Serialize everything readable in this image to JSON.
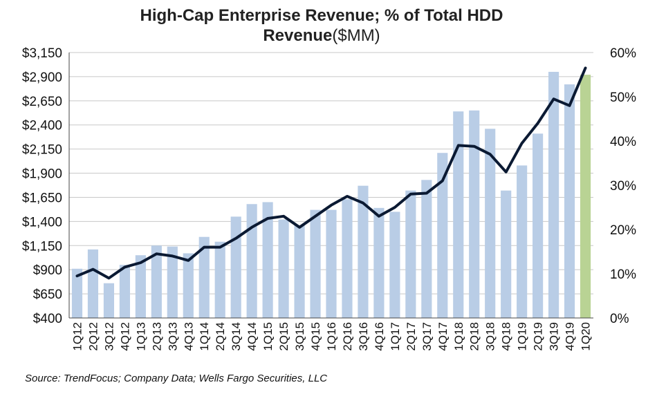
{
  "title": {
    "line1": "High-Cap Enterprise Revenue; % of Total HDD",
    "line2_bold": "Revenue",
    "line2_normal": "($MM)"
  },
  "source": "Source:  TrendFocus; Company Data; Wells Fargo Securities, LLC",
  "colors": {
    "bar": "#b9cde6",
    "bar_highlight": "#b9d394",
    "line": "#0b1a33",
    "grid": "#c8c8c8"
  },
  "chart_data": {
    "type": "bar",
    "categories": [
      "1Q12",
      "2Q12",
      "3Q12",
      "4Q12",
      "1Q13",
      "2Q13",
      "3Q13",
      "4Q13",
      "1Q14",
      "2Q14",
      "3Q14",
      "4Q14",
      "1Q15",
      "2Q15",
      "3Q15",
      "4Q15",
      "1Q16",
      "2Q16",
      "3Q16",
      "4Q16",
      "1Q17",
      "2Q17",
      "3Q17",
      "4Q17",
      "1Q18",
      "2Q18",
      "3Q18",
      "4Q18",
      "1Q19",
      "2Q19",
      "3Q19",
      "4Q19",
      "1Q20"
    ],
    "series": [
      {
        "type": "bar",
        "axis": "left",
        "values": [
          910,
          1110,
          760,
          950,
          1050,
          1150,
          1140,
          1070,
          1240,
          1190,
          1450,
          1580,
          1600,
          1420,
          1360,
          1520,
          1520,
          1630,
          1770,
          1540,
          1500,
          1720,
          1830,
          2110,
          2540,
          2550,
          2360,
          1720,
          1980,
          2310,
          2950,
          2820,
          2920
        ],
        "highlight_index": 32
      },
      {
        "type": "line",
        "axis": "right",
        "values": [
          9.5,
          11,
          9,
          11.5,
          12.5,
          14.5,
          14,
          13,
          16,
          16,
          18,
          20.5,
          22.5,
          23,
          20.5,
          23,
          25.5,
          27.5,
          26,
          23,
          25,
          28,
          28.2,
          31,
          39,
          38.8,
          37,
          33,
          39.5,
          44,
          49.5,
          48,
          56.5
        ]
      }
    ],
    "left_axis": {
      "min": 400,
      "max": 3150,
      "ticks": [
        400,
        650,
        900,
        1150,
        1400,
        1650,
        1900,
        2150,
        2400,
        2650,
        2900,
        3150
      ],
      "tick_labels": [
        "$400",
        "$650",
        "$900",
        "$1,150",
        "$1,400",
        "$1,650",
        "$1,900",
        "$2,150",
        "$2,400",
        "$2,650",
        "$2,900",
        "$3,150"
      ]
    },
    "right_axis": {
      "min": 0,
      "max": 60,
      "ticks": [
        0,
        10,
        20,
        30,
        40,
        50,
        60
      ],
      "tick_labels": [
        "0%",
        "10%",
        "20%",
        "30%",
        "40%",
        "50%",
        "60%"
      ]
    },
    "grid": true,
    "legend": "none"
  }
}
